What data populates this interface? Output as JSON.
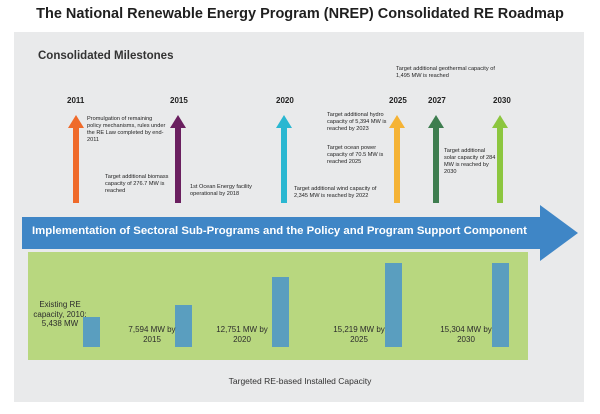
{
  "title": "The National Renewable Energy Program (NREP) Consolidated RE Roadmap",
  "milestones_heading": "Consolidated Milestones",
  "years": [
    "2011",
    "2015",
    "2020",
    "2025",
    "2027",
    "2030"
  ],
  "arrow_colors": {
    "2011": "#ef6a2a",
    "2015": "#6a1f5f",
    "2020": "#2ab7d1",
    "2025": "#f5b335",
    "2027": "#3e7d4f",
    "2030": "#8cc63f"
  },
  "notes": {
    "policy": "Promulgation of remaining policy mechanisms, rules under the RE Law completed by end-2011",
    "biomass": "Target additional biomass capacity of 276.7 MW is reached",
    "ocean_facility": "1st Ocean Energy facility operational by 2018",
    "wind": "Target additional wind capacity of 2,345 MW is reached by 2022",
    "hydro": "Target additional hydro capacity of 5,394 MW is reached by 2023",
    "ocean_power": "Target ocean power capacity of 70.5 MW is reached 2025",
    "geothermal": "Target additional geothermal capacity of 1,495 MW is reached",
    "solar": "Target additional solar capacity of 284 MW is reached by 2030"
  },
  "banner": "Implementation of Sectoral Sub-Programs and the Policy and Program Support Component",
  "footer": "Targeted RE-based Installed Capacity",
  "chart_data": {
    "type": "bar",
    "title": "Targeted RE-based Installed Capacity",
    "categories": [
      "2010",
      "2015",
      "2020",
      "2025",
      "2030"
    ],
    "values": [
      5438,
      7594,
      12751,
      15219,
      15304
    ],
    "unit": "MW",
    "labels": [
      "Existing RE capacity, 2010: 5,438 MW",
      "7,594 MW by 2015",
      "12,751 MW by 2020",
      "15,219 MW by 2025",
      "15,304 MW by 2030"
    ],
    "ylim": [
      0,
      16000
    ],
    "colors": {
      "bar": "#5a9ebf"
    }
  }
}
